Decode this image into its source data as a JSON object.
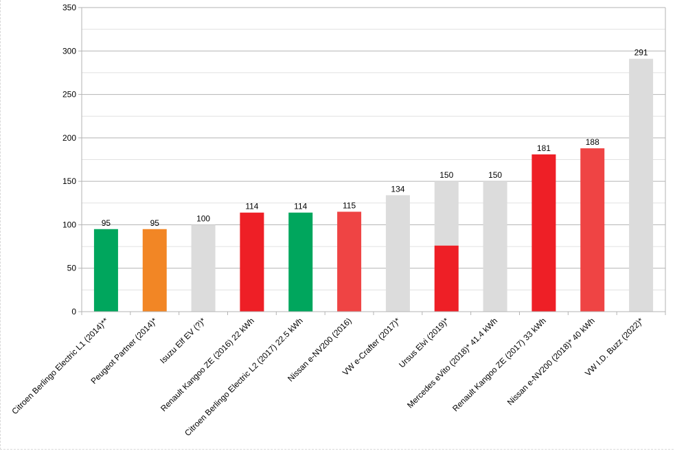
{
  "chart_data": {
    "type": "bar",
    "title": "",
    "xlabel": "",
    "ylabel": "",
    "ylim": [
      0,
      350
    ],
    "yticks": [
      0,
      50,
      100,
      150,
      200,
      250,
      300,
      350
    ],
    "grid": true,
    "legend": "none",
    "categories": [
      "Citroen Berlingo Electric L1 (2014)**",
      "Peugeot Partner (2014)*",
      "Isuzu Elf EV (?)*",
      "Renault Kangoo ZE (2016) 22 kWh",
      "Citroen Berlingo Electric L2 (2017) 22.5 kWh",
      "Nissan e-NV200 (2016)",
      "VW e-Crafter (2017)*",
      "Ursus Elvi (2019)*",
      "Mercedes eVito (2018)* 41.4 kWh",
      "Renault Kangoo ZE (2017) 33 kWh",
      "Nissan e-NV200 (2018)* 40 kWh",
      "VW I.D. Buzz (2022)*"
    ],
    "values": [
      95,
      95,
      100,
      114,
      114,
      115,
      134,
      150,
      150,
      181,
      188,
      291
    ],
    "value_labels": [
      "95",
      "95",
      "100",
      "114",
      "114",
      "115",
      "134",
      "150",
      "150",
      "181",
      "188",
      "291"
    ],
    "colors": [
      "#00a65d",
      "#f28625",
      "#dcdcdc",
      "#ee1f26",
      "#00a65d",
      "#ef4444",
      "#dcdcdc",
      "#dcdcdc",
      "#dcdcdc",
      "#ee1f26",
      "#ef4444",
      "#dcdcdc"
    ],
    "overlay": [
      {
        "category_index": 7,
        "value": 76,
        "color": "#ee1f26"
      }
    ]
  }
}
